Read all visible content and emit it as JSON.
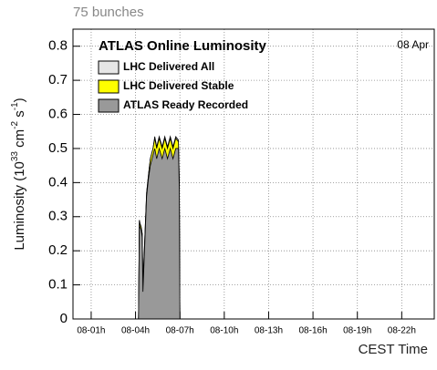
{
  "chart_data": {
    "type": "area",
    "subtitle": "75 bunches",
    "title": "ATLAS Online Luminosity",
    "date_label": "08 Apr",
    "ylabel": [
      "Luminosity (10",
      "33",
      " cm",
      "-2",
      " s",
      "-1",
      ")"
    ],
    "xlabel": "CEST Time",
    "x": [
      4.2,
      4.26,
      4.3,
      4.38,
      4.45,
      4.5,
      4.75,
      4.87,
      5.0,
      5.18,
      5.3,
      5.43,
      5.6,
      5.8,
      5.98,
      6.16,
      6.35,
      6.53,
      6.72,
      6.9,
      6.96,
      7.0
    ],
    "series": [
      {
        "name": "LHC Delivered All",
        "color": "#e6e6e6",
        "values": [
          0,
          0.29,
          0.28,
          0.27,
          0.25,
          0.1,
          0.37,
          0.42,
          0.47,
          0.5,
          0.535,
          0.505,
          0.535,
          0.505,
          0.535,
          0.505,
          0.535,
          0.505,
          0.535,
          0.525,
          0.4,
          0
        ]
      },
      {
        "name": "LHC Delivered Stable",
        "color": "#ffff00",
        "values": [
          0,
          0.29,
          0.28,
          0.27,
          0.25,
          0.1,
          0.37,
          0.42,
          0.47,
          0.5,
          0.53,
          0.5,
          0.53,
          0.5,
          0.53,
          0.5,
          0.53,
          0.5,
          0.53,
          0.52,
          0.4,
          0
        ]
      },
      {
        "name": "ATLAS Ready Recorded",
        "color": "#999999",
        "values": [
          0,
          0.28,
          0.27,
          0.26,
          0.24,
          0.08,
          0.36,
          0.41,
          0.45,
          0.48,
          0.5,
          0.47,
          0.5,
          0.47,
          0.5,
          0.47,
          0.5,
          0.47,
          0.5,
          0.5,
          0.38,
          0
        ]
      }
    ],
    "xlim": [
      -0.23,
      24.2
    ],
    "xticks": [
      {
        "value": 1,
        "label": "08-01h"
      },
      {
        "value": 4,
        "label": "08-04h"
      },
      {
        "value": 7,
        "label": "08-07h"
      },
      {
        "value": 10,
        "label": "08-10h"
      },
      {
        "value": 13,
        "label": "08-13h"
      },
      {
        "value": 16,
        "label": "08-16h"
      },
      {
        "value": 19,
        "label": "08-19h"
      },
      {
        "value": 22,
        "label": "08-22h"
      }
    ],
    "ylim": [
      0,
      0.85
    ],
    "yticks": [
      0,
      0.1,
      0.2,
      0.3,
      0.4,
      0.5,
      0.6,
      0.7,
      0.8
    ],
    "grid": true
  }
}
